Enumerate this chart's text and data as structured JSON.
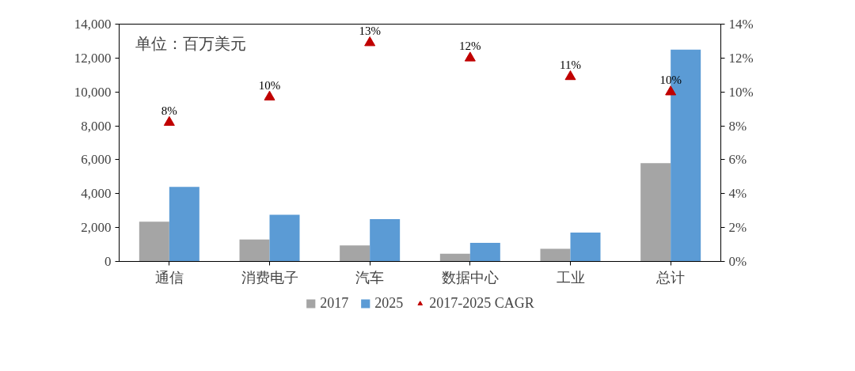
{
  "chart_data": {
    "type": "bar",
    "categories": [
      "通信",
      "消费电子",
      "汽车",
      "数据中心",
      "工业",
      "总计"
    ],
    "series": [
      {
        "name": "2017",
        "color": "#a5a5a5",
        "values": [
          2350,
          1300,
          950,
          450,
          750,
          5800
        ]
      },
      {
        "name": "2025",
        "color": "#5b9bd5",
        "values": [
          4400,
          2750,
          2500,
          1100,
          1700,
          12500
        ]
      },
      {
        "name": "2017-2025 CAGR",
        "type": "scatter",
        "marker": "triangle",
        "axis": "y2",
        "color": "#c00000",
        "values": [
          8.2,
          9.7,
          12.9,
          12.0,
          10.9,
          10.0
        ],
        "value_labels": [
          "8%",
          "10%",
          "13%",
          "12%",
          "11%",
          "10%"
        ]
      }
    ],
    "ylim": [
      0,
      14000
    ],
    "yticks": [
      0,
      {
        "value": 2000,
        "label": "2,000"
      },
      {
        "value": 4000,
        "label": "4,000"
      },
      {
        "value": 6000,
        "label": "6,000"
      },
      {
        "value": 8000,
        "label": "8,000"
      },
      {
        "value": 10000,
        "label": "10,000"
      },
      {
        "value": 12000,
        "label": "12,000"
      },
      {
        "value": 14000,
        "label": "14,000"
      }
    ],
    "y2lim": [
      0,
      14
    ],
    "y2ticks": [
      {
        "value": 0,
        "label": "0%"
      },
      {
        "value": 2,
        "label": "2%"
      },
      {
        "value": 4,
        "label": "4%"
      },
      {
        "value": 6,
        "label": "6%"
      },
      {
        "value": 8,
        "label": "8%"
      },
      {
        "value": 10,
        "label": "10%"
      },
      {
        "value": 12,
        "label": "12%"
      },
      {
        "value": 14,
        "label": "14%"
      }
    ],
    "annotations": [
      "单位：百万美元"
    ],
    "legend": "bottom",
    "grid": false
  }
}
